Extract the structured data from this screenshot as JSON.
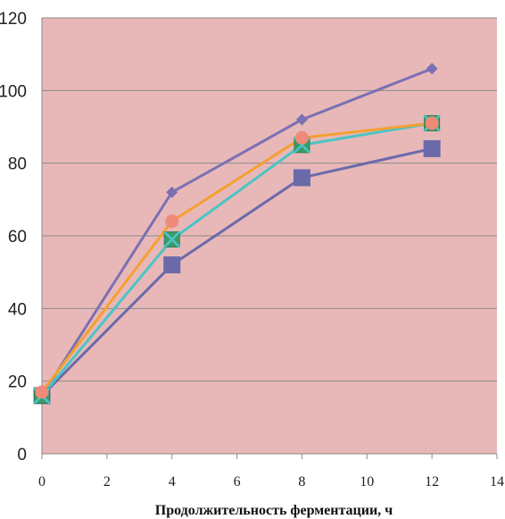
{
  "chart_data": {
    "type": "line",
    "xlabel": "Продолжительность ферментации, ч",
    "ylabel": "",
    "xlim": [
      0,
      14
    ],
    "ylim": [
      0,
      120
    ],
    "x_ticks": [
      0,
      2,
      4,
      6,
      8,
      10,
      12,
      14
    ],
    "y_ticks": [
      0,
      20,
      40,
      60,
      80,
      100,
      120
    ],
    "grid": "horizontal",
    "plot_background": "#e8b8b8",
    "series": [
      {
        "x": [
          0,
          4,
          8,
          12
        ],
        "values": [
          16,
          72,
          92,
          106
        ],
        "color": "#7b70b3",
        "marker": "diamond"
      },
      {
        "x": [
          0,
          4,
          8,
          12
        ],
        "values": [
          16,
          52,
          76,
          84
        ],
        "color": "#6a6aaa",
        "marker": "square"
      },
      {
        "x": [
          0,
          4,
          8,
          12
        ],
        "values": [
          16,
          59,
          85,
          91
        ],
        "color": "#4cc4c4",
        "marker": "square-x"
      },
      {
        "x": [
          0,
          4,
          8,
          12
        ],
        "values": [
          17,
          64,
          87,
          91
        ],
        "color": "#f5a030",
        "marker": "circle"
      }
    ]
  }
}
